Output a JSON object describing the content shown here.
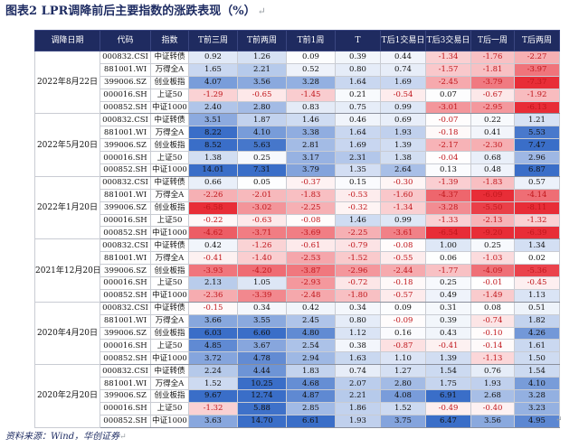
{
  "title": "图表2 LPR调降前后主要指数的涨跌表现（%）",
  "para_mark": "↵",
  "headers": [
    "调降日期",
    "代码",
    "指数",
    "T前三周",
    "T前两周",
    "T前1周",
    "T",
    "T后1交易日",
    "T后3交易日",
    "T后一周",
    "T后两周"
  ],
  "source": "资料来源：Wind，华创证券",
  "groups": [
    {
      "date": "2022年8月22日",
      "rows": [
        {
          "code": "000832.CSI",
          "name": "中证转债",
          "values": [
            "0.92",
            "1.26",
            "0.09",
            "0.39",
            "0.44",
            "-1.34",
            "-1.76",
            "-2.27"
          ]
        },
        {
          "code": "881001.WI",
          "name": "万得全A",
          "values": [
            "1.65",
            "2.21",
            "0.52",
            "0.80",
            "0.74",
            "-1.57",
            "-1.81",
            "-3.97"
          ]
        },
        {
          "code": "399006.SZ",
          "name": "创业板指",
          "values": [
            "4.07",
            "3.56",
            "3.28",
            "1.64",
            "1.69",
            "-2.45",
            "-3.79",
            "-7.37"
          ]
        },
        {
          "code": "000016.SH",
          "name": "上证50",
          "values": [
            "-1.29",
            "-0.65",
            "-1.45",
            "0.21",
            "-0.54",
            "0.07",
            "-0.67",
            "-1.92"
          ]
        },
        {
          "code": "000852.SH",
          "name": "中证1000",
          "values": [
            "2.40",
            "2.80",
            "0.83",
            "0.75",
            "0.99",
            "-3.01",
            "-2.95",
            "-6.13"
          ]
        }
      ]
    },
    {
      "date": "2022年5月20日",
      "rows": [
        {
          "code": "000832.CSI",
          "name": "中证转债",
          "values": [
            "3.51",
            "1.87",
            "1.46",
            "0.46",
            "0.69",
            "-0.07",
            "0.22",
            "1.21"
          ]
        },
        {
          "code": "881001.WI",
          "name": "万得全A",
          "values": [
            "8.22",
            "4.10",
            "3.38",
            "1.64",
            "1.93",
            "-0.18",
            "0.41",
            "5.53"
          ]
        },
        {
          "code": "399006.SZ",
          "name": "创业板指",
          "values": [
            "8.52",
            "5.63",
            "2.81",
            "1.69",
            "1.39",
            "-2.17",
            "-2.30",
            "7.47"
          ]
        },
        {
          "code": "000016.SH",
          "name": "上证50",
          "values": [
            "1.38",
            "0.25",
            "3.17",
            "2.31",
            "1.38",
            "-0.04",
            "0.68",
            "2.96"
          ]
        },
        {
          "code": "000852.SH",
          "name": "中证1000",
          "values": [
            "14.01",
            "7.31",
            "3.79",
            "1.35",
            "2.64",
            "0.13",
            "0.48",
            "6.87"
          ]
        }
      ]
    },
    {
      "date": "2022年1月20日",
      "rows": [
        {
          "code": "000832.CSI",
          "name": "中证转债",
          "values": [
            "0.66",
            "0.05",
            "-0.37",
            "0.15",
            "-0.30",
            "-1.39",
            "-1.83",
            "0.57"
          ]
        },
        {
          "code": "881001.WI",
          "name": "万得全A",
          "values": [
            "-2.26",
            "-2.01",
            "-1.83",
            "-0.53",
            "-1.60",
            "-4.37",
            "-6.09",
            "-4.14"
          ]
        },
        {
          "code": "399006.SZ",
          "name": "创业板指",
          "values": [
            "-6.58",
            "-3.02",
            "-2.25",
            "-0.32",
            "-1.34",
            "-3.28",
            "-5.50",
            "-8.11"
          ]
        },
        {
          "code": "000016.SH",
          "name": "上证50",
          "values": [
            "-0.22",
            "-0.63",
            "-0.08",
            "1.46",
            "0.99",
            "-1.33",
            "-2.13",
            "-1.32"
          ]
        },
        {
          "code": "000852.SH",
          "name": "中证1000",
          "values": [
            "-4.62",
            "-3.71",
            "-3.69",
            "-2.25",
            "-3.61",
            "-6.54",
            "-9.20",
            "-6.39"
          ]
        }
      ]
    },
    {
      "date": "2021年12月20日",
      "rows": [
        {
          "code": "000832.CSI",
          "name": "中证转债",
          "values": [
            "0.42",
            "-1.26",
            "-0.61",
            "-0.79",
            "-0.08",
            "1.00",
            "0.25",
            "1.34"
          ]
        },
        {
          "code": "881001.WI",
          "name": "万得全A",
          "values": [
            "-0.41",
            "-1.40",
            "-2.53",
            "-1.52",
            "-0.55",
            "0.06",
            "-1.03",
            "0.02"
          ]
        },
        {
          "code": "399006.SZ",
          "name": "创业板指",
          "values": [
            "-3.93",
            "-4.20",
            "-3.87",
            "-2.96",
            "-2.44",
            "-1.77",
            "-4.09",
            "-5.36"
          ]
        },
        {
          "code": "000016.SH",
          "name": "上证50",
          "values": [
            "2.13",
            "1.05",
            "-2.93",
            "-0.72",
            "-0.18",
            "0.25",
            "-0.01",
            "-0.45"
          ]
        },
        {
          "code": "000852.SH",
          "name": "中证1000",
          "values": [
            "-2.36",
            "-3.39",
            "-2.48",
            "-1.80",
            "-0.57",
            "0.49",
            "-1.49",
            "1.13"
          ]
        }
      ]
    },
    {
      "date": "2020年4月20日",
      "rows": [
        {
          "code": "000832.CSI",
          "name": "中证转债",
          "values": [
            "-0.15",
            "0.34",
            "0.42",
            "0.34",
            "0.09",
            "0.31",
            "0.08",
            "0.51"
          ]
        },
        {
          "code": "881001.WI",
          "name": "万得全A",
          "values": [
            "3.66",
            "3.55",
            "2.45",
            "0.80",
            "-0.09",
            "0.39",
            "-0.74",
            "1.82"
          ]
        },
        {
          "code": "399006.SZ",
          "name": "创业板指",
          "values": [
            "6.03",
            "6.60",
            "4.80",
            "1.12",
            "0.16",
            "0.43",
            "-0.10",
            "4.26"
          ]
        },
        {
          "code": "000016.SH",
          "name": "上证50",
          "values": [
            "4.85",
            "3.67",
            "2.54",
            "0.38",
            "-0.87",
            "-0.41",
            "-0.14",
            "1.61"
          ]
        },
        {
          "code": "000852.SH",
          "name": "中证1000",
          "values": [
            "3.72",
            "4.78",
            "2.94",
            "1.63",
            "1.10",
            "1.39",
            "-1.13",
            "1.50"
          ]
        }
      ]
    },
    {
      "date": "2020年2月20日",
      "rows": [
        {
          "code": "000832.CSI",
          "name": "中证转债",
          "values": [
            "2.24",
            "4.44",
            "1.83",
            "0.74",
            "1.27",
            "1.54",
            "0.76",
            "1.54"
          ]
        },
        {
          "code": "881001.WI",
          "name": "万得全A",
          "values": [
            "1.52",
            "10.25",
            "4.68",
            "2.07",
            "2.80",
            "1.75",
            "1.93",
            "4.10"
          ]
        },
        {
          "code": "399006.SZ",
          "name": "创业板指",
          "values": [
            "9.67",
            "12.74",
            "4.87",
            "2.21",
            "4.08",
            "6.91",
            "2.68",
            "3.28"
          ]
        },
        {
          "code": "000016.SH",
          "name": "上证50",
          "values": [
            "-1.32",
            "5.88",
            "2.85",
            "1.86",
            "1.52",
            "-0.49",
            "-0.40",
            "3.23"
          ]
        },
        {
          "code": "000852.SH",
          "name": "中证1000",
          "values": [
            "3.63",
            "14.70",
            "6.61",
            "1.93",
            "3.75",
            "6.47",
            "3.56",
            "4.95"
          ]
        }
      ]
    }
  ]
}
